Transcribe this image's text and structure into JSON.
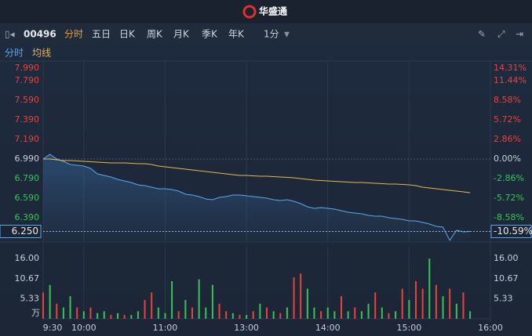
{
  "app": {
    "brand": "华盛通",
    "code": "00496",
    "tabs": [
      "分时",
      "五日",
      "日K",
      "周K",
      "月K",
      "季K",
      "年K"
    ],
    "active_tab": 0,
    "interval": "1分"
  },
  "chart_data": [
    {
      "type": "line",
      "x": [
        0,
        5,
        10,
        15,
        20,
        25,
        30,
        35,
        40,
        45,
        50,
        55,
        60,
        65,
        70,
        75,
        80,
        85,
        90,
        95,
        100,
        105,
        110,
        115,
        120,
        125,
        130,
        135,
        140,
        145,
        150,
        155,
        160,
        165,
        170,
        175,
        180,
        185,
        190,
        195,
        200,
        205,
        210,
        215,
        220,
        225,
        230,
        235,
        240,
        245,
        250,
        255,
        260,
        265,
        270,
        275,
        280,
        285,
        290,
        295,
        300,
        305,
        310,
        315
      ],
      "series": [
        {
          "name": "分时",
          "color": "#5aa8f0",
          "values": [
            6.99,
            7.038,
            6.99,
            6.966,
            6.934,
            6.926,
            6.918,
            6.894,
            6.838,
            6.822,
            6.806,
            6.782,
            6.766,
            6.75,
            6.726,
            6.718,
            6.702,
            6.686,
            6.686,
            6.678,
            6.662,
            6.63,
            6.622,
            6.606,
            6.582,
            6.574,
            6.598,
            6.606,
            6.622,
            6.622,
            6.614,
            6.606,
            6.598,
            6.59,
            6.574,
            6.566,
            6.574,
            6.558,
            6.534,
            6.502,
            6.486,
            6.494,
            6.486,
            6.478,
            6.462,
            6.446,
            6.438,
            6.43,
            6.414,
            6.406,
            6.406,
            6.39,
            6.382,
            6.374,
            6.358,
            6.358,
            6.342,
            6.326,
            6.302,
            6.294,
            6.16,
            6.262,
            6.246,
            6.25
          ]
        },
        {
          "name": "均线",
          "color": "#e8b84a",
          "values": [
            6.99,
            6.99,
            6.982,
            6.974,
            6.974,
            6.97,
            6.966,
            6.962,
            6.958,
            6.954,
            6.95,
            6.95,
            6.95,
            6.946,
            6.942,
            6.942,
            6.934,
            6.918,
            6.91,
            6.902,
            6.894,
            6.886,
            6.878,
            6.87,
            6.862,
            6.854,
            6.846,
            6.838,
            6.83,
            6.822,
            6.822,
            6.818,
            6.814,
            6.814,
            6.81,
            6.806,
            6.802,
            6.798,
            6.79,
            6.782,
            6.774,
            6.77,
            6.766,
            6.762,
            6.758,
            6.754,
            6.75,
            6.75,
            6.746,
            6.742,
            6.738,
            6.734,
            6.734,
            6.73,
            6.726,
            6.718,
            6.702,
            6.694,
            6.686,
            6.678,
            6.67,
            6.662,
            6.654,
            6.646
          ]
        }
      ],
      "xlim": [
        0,
        330
      ],
      "ylim": [
        6.15,
        7.99
      ],
      "yticks": [
        {
          "value": 7.99,
          "label": "7.990"
        },
        {
          "value": 7.79,
          "label": "7.790"
        },
        {
          "value": 7.59,
          "label": "7.590"
        },
        {
          "value": 7.39,
          "label": "7.390"
        },
        {
          "value": 7.19,
          "label": "7.190"
        },
        {
          "value": 6.99,
          "label": "6.990"
        },
        {
          "value": 6.79,
          "label": "6.790"
        },
        {
          "value": 6.59,
          "label": "6.590"
        },
        {
          "value": 6.39,
          "label": "6.390"
        }
      ],
      "y2lim": [
        -12.02,
        14.31
      ],
      "y2ticks": [
        {
          "value": 14.31,
          "label": "14.31%"
        },
        {
          "value": 11.44,
          "label": "11.44%"
        },
        {
          "value": 8.58,
          "label": "8.58%"
        },
        {
          "value": 5.72,
          "label": "5.72%"
        },
        {
          "value": 2.86,
          "label": "2.86%"
        },
        {
          "value": 0,
          "label": "0.00%"
        },
        {
          "value": -2.86,
          "label": "-2.86%"
        },
        {
          "value": -5.72,
          "label": "-5.72%"
        },
        {
          "value": -8.58,
          "label": "-8.58%"
        }
      ],
      "last_price": {
        "value": 6.25,
        "label": "6.250"
      },
      "last_change": {
        "value": -10.59,
        "label": "-10.59%"
      }
    },
    {
      "type": "bar",
      "x": [
        0,
        5,
        10,
        15,
        20,
        25,
        30,
        35,
        40,
        45,
        50,
        55,
        60,
        65,
        70,
        75,
        80,
        85,
        90,
        95,
        100,
        105,
        110,
        115,
        120,
        125,
        130,
        135,
        140,
        145,
        150,
        155,
        160,
        165,
        170,
        175,
        180,
        185,
        190,
        195,
        200,
        205,
        210,
        215,
        220,
        225,
        230,
        235,
        240,
        245,
        250,
        255,
        260,
        265,
        270,
        275,
        280,
        285,
        290,
        295,
        300,
        305,
        310,
        315
      ],
      "values": [
        7,
        9,
        4,
        3,
        6,
        3,
        2,
        3,
        1.5,
        2,
        1,
        1.5,
        1,
        1,
        2,
        5,
        7,
        3,
        1.5,
        10,
        2,
        5,
        3,
        10.5,
        3,
        9,
        4,
        2,
        1.5,
        1,
        1,
        2,
        4,
        3,
        2,
        1.5,
        3,
        11,
        12,
        8,
        3,
        2,
        3,
        2,
        6,
        2,
        3,
        2,
        4,
        7,
        3,
        1.5,
        2,
        8,
        5,
        10,
        8,
        16,
        9,
        6,
        8,
        4,
        7,
        2
      ],
      "colors": [
        "#e5443c",
        "#35c45a",
        "#e5443c",
        "#35c45a",
        "#35c45a",
        "#e5443c",
        "#35c45a",
        "#e5443c",
        "#35c45a",
        "#35c45a",
        "#e5443c",
        "#35c45a",
        "#e5443c",
        "#35c45a",
        "#35c45a",
        "#e5443c",
        "#e5443c",
        "#35c45a",
        "#35c45a",
        "#35c45a",
        "#e5443c",
        "#35c45a",
        "#e5443c",
        "#35c45a",
        "#35c45a",
        "#35c45a",
        "#e5443c",
        "#e5443c",
        "#35c45a",
        "#e5443c",
        "#35c45a",
        "#e5443c",
        "#35c45a",
        "#e5443c",
        "#35c45a",
        "#e5443c",
        "#35c45a",
        "#e5443c",
        "#e5443c",
        "#35c45a",
        "#35c45a",
        "#e5443c",
        "#35c45a",
        "#35c45a",
        "#e5443c",
        "#35c45a",
        "#e5443c",
        "#35c45a",
        "#35c45a",
        "#e5443c",
        "#35c45a",
        "#e5443c",
        "#35c45a",
        "#e5443c",
        "#35c45a",
        "#e5443c",
        "#e5443c",
        "#35c45a",
        "#e5443c",
        "#35c45a",
        "#e5443c",
        "#35c45a",
        "#e5443c",
        "#35c45a"
      ],
      "xlim": [
        0,
        330
      ],
      "ylim": [
        0,
        19.16
      ],
      "yticks": [
        {
          "value": 16,
          "label": "16.00"
        },
        {
          "value": 10.67,
          "label": "10.67"
        },
        {
          "value": 5.33,
          "label": "5.33"
        }
      ],
      "unit": "万",
      "xticks": [
        {
          "value": 0,
          "label": "9:30"
        },
        {
          "value": 30,
          "label": "10:00"
        },
        {
          "value": 90,
          "label": "11:00"
        },
        {
          "value": 150,
          "label": "13:00"
        },
        {
          "value": 210,
          "label": "14:00"
        },
        {
          "value": 270,
          "label": "15:00"
        },
        {
          "value": 330,
          "label": "16:00"
        }
      ]
    }
  ]
}
